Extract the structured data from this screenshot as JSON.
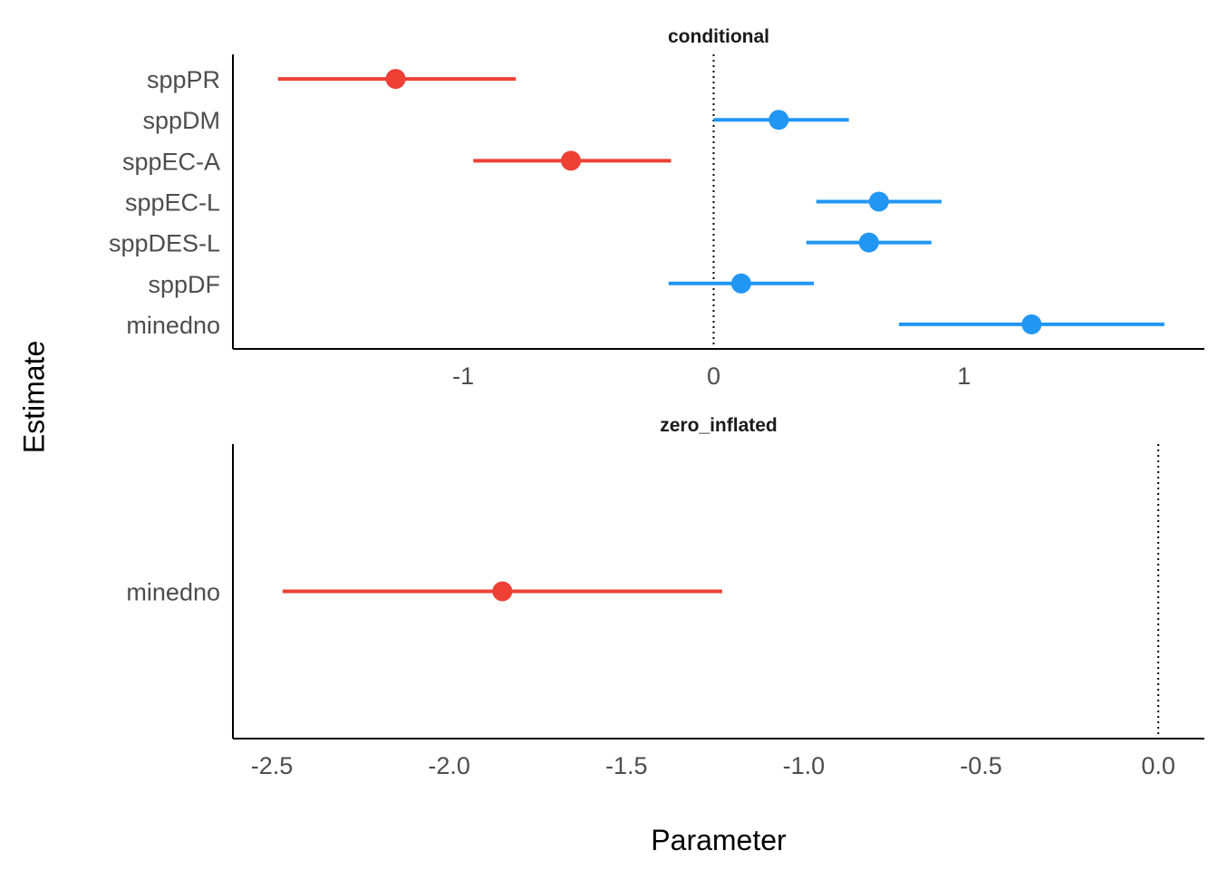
{
  "chart_data": {
    "type": "scatter",
    "subtype": "coefficient-plot",
    "xlabel": "Parameter",
    "ylabel": "Estimate",
    "grid": false,
    "legend": "none",
    "colors": {
      "negative": "#EE4035",
      "positive": "#2196F3",
      "axis": "#000000",
      "reference_line": "#000000"
    },
    "panels": [
      {
        "title": "conditional",
        "xlim": [
          -1.92,
          1.96
        ],
        "xticks": [
          -1,
          0,
          1
        ],
        "xtick_labels": [
          "-1",
          "0",
          "1"
        ],
        "reference_line": 0,
        "terms": [
          "sppPR",
          "sppDM",
          "sppEC-A",
          "sppEC-L",
          "sppDES-L",
          "sppDF",
          "minedno"
        ],
        "estimates": [
          -1.27,
          0.26,
          -0.57,
          0.66,
          0.62,
          0.11,
          1.27
        ],
        "ci_low": [
          -1.74,
          0.0,
          -0.96,
          0.41,
          0.37,
          -0.18,
          0.74
        ],
        "ci_high": [
          -0.79,
          0.54,
          -0.17,
          0.91,
          0.87,
          0.4,
          1.8
        ]
      },
      {
        "title": "zero_inflated",
        "xlim": [
          -2.61,
          0.13
        ],
        "xticks": [
          -2.5,
          -2.0,
          -1.5,
          -1.0,
          -0.5,
          0.0
        ],
        "xtick_labels": [
          "-2.5",
          "-2.0",
          "-1.5",
          "-1.0",
          "-0.5",
          "0.0"
        ],
        "reference_line": 0,
        "terms": [
          "minedno"
        ],
        "estimates": [
          -1.85
        ],
        "ci_low": [
          -2.47
        ],
        "ci_high": [
          -1.23
        ]
      }
    ]
  }
}
